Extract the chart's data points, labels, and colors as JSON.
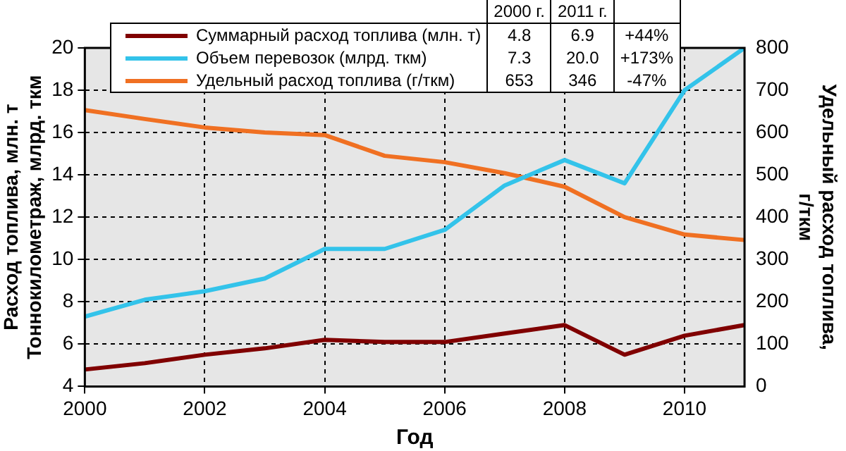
{
  "chart_data": {
    "type": "line",
    "xlabel": "Год",
    "ylabel": "Расход топлива, млн. т\nТоннокилометраж, млрд. ткм",
    "y2label": "Удельный расход топлива,\nг/ткм",
    "x": [
      2000,
      2001,
      2002,
      2003,
      2004,
      2005,
      2006,
      2007,
      2008,
      2009,
      2010,
      2011
    ],
    "xlim": [
      2000,
      2011
    ],
    "xticks": [
      2000,
      2002,
      2004,
      2006,
      2008,
      2010
    ],
    "ylim": [
      4,
      20
    ],
    "yticks": [
      4,
      6,
      8,
      10,
      12,
      14,
      16,
      18,
      20
    ],
    "y2lim": [
      0,
      800
    ],
    "y2ticks": [
      0,
      100,
      200,
      300,
      400,
      500,
      600,
      700,
      800
    ],
    "grid": true,
    "legend": "top",
    "marker": "none",
    "line_style": "solid",
    "annotations": [
      "2000 г.",
      "2011 г.",
      "4.8",
      "6.9",
      "+44%",
      "7.3",
      "20.0",
      "+173%",
      "653",
      "346",
      "-47%"
    ],
    "series": [
      {
        "name": "Суммарный расход топлива (млн. т)",
        "color": "#800000",
        "values": [
          4.8,
          5.1,
          5.5,
          5.8,
          6.2,
          6.1,
          6.1,
          6.5,
          6.9,
          5.5,
          6.4,
          6.9
        ]
      },
      {
        "name": "Объем перевозок (млрд. ткм)",
        "color": "#33c3ea",
        "values": [
          7.3,
          8.1,
          8.5,
          9.1,
          10.5,
          10.5,
          11.4,
          13.5,
          14.7,
          13.6,
          18.0,
          20.0
        ]
      },
      {
        "name": "Удельный расход топлива (г/ткм)",
        "color": "#f07022",
        "axis": "y2",
        "values": [
          653,
          632,
          612,
          600,
          594,
          545,
          530,
          504,
          472,
          400,
          359,
          346
        ]
      }
    ]
  }
}
